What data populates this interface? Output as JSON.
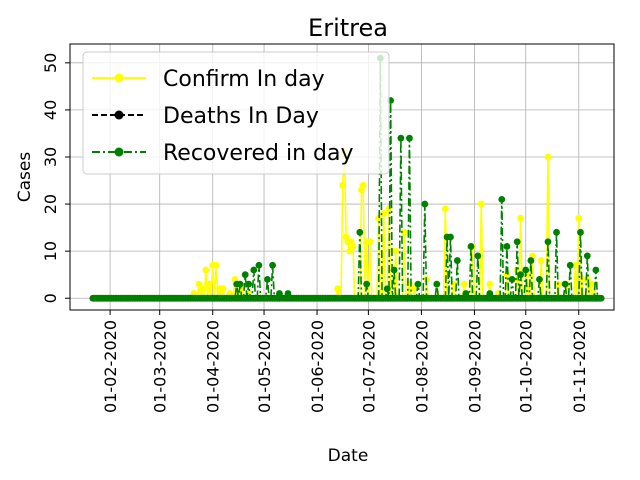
{
  "chart_data": {
    "type": "line",
    "title": "Eritrea",
    "xlabel": "Date",
    "ylabel": "Cases",
    "x_tick_labels": [
      "01-02-2020",
      "01-03-2020",
      "01-04-2020",
      "01-05-2020",
      "01-06-2020",
      "01-07-2020",
      "01-08-2020",
      "01-09-2020",
      "01-10-2020",
      "01-11-2020"
    ],
    "y_tick_labels": [
      "0",
      "10",
      "20",
      "30",
      "40",
      "50"
    ],
    "x_range": [
      "2020-01-22",
      "2020-11-14"
    ],
    "ylim": [
      -2.5,
      54
    ],
    "grid": true,
    "legend_position": "top-left",
    "series": [
      {
        "name": "Confirm In day",
        "color": "#ffff00",
        "line_style": "solid",
        "points": [
          [
            "2020-03-21",
            1
          ],
          [
            "2020-03-24",
            3
          ],
          [
            "2020-03-26",
            2
          ],
          [
            "2020-03-28",
            6
          ],
          [
            "2020-03-30",
            3
          ],
          [
            "2020-04-01",
            7
          ],
          [
            "2020-04-03",
            7
          ],
          [
            "2020-04-05",
            2
          ],
          [
            "2020-04-07",
            2
          ],
          [
            "2020-04-11",
            1
          ],
          [
            "2020-04-14",
            4
          ],
          [
            "2020-04-16",
            1
          ],
          [
            "2020-04-18",
            2
          ],
          [
            "2020-04-22",
            1
          ],
          [
            "2020-06-13",
            2
          ],
          [
            "2020-06-16",
            24
          ],
          [
            "2020-06-17",
            31
          ],
          [
            "2020-06-18",
            13
          ],
          [
            "2020-06-19",
            12
          ],
          [
            "2020-06-20",
            10
          ],
          [
            "2020-06-21",
            12
          ],
          [
            "2020-06-22",
            11
          ],
          [
            "2020-06-27",
            23
          ],
          [
            "2020-06-28",
            24
          ],
          [
            "2020-06-30",
            12
          ],
          [
            "2020-07-02",
            12
          ],
          [
            "2020-07-07",
            17
          ],
          [
            "2020-07-10",
            18
          ],
          [
            "2020-07-13",
            19
          ],
          [
            "2020-07-17",
            10
          ],
          [
            "2020-07-22",
            14
          ],
          [
            "2020-07-25",
            3
          ],
          [
            "2020-07-28",
            2
          ],
          [
            "2020-08-04",
            4
          ],
          [
            "2020-08-10",
            3
          ],
          [
            "2020-08-15",
            19
          ],
          [
            "2020-08-20",
            3
          ],
          [
            "2020-08-26",
            3
          ],
          [
            "2020-08-31",
            11
          ],
          [
            "2020-09-05",
            20
          ],
          [
            "2020-09-10",
            3
          ],
          [
            "2020-09-15",
            1
          ],
          [
            "2020-09-20",
            5
          ],
          [
            "2020-09-26",
            6
          ],
          [
            "2020-09-28",
            17
          ],
          [
            "2020-10-02",
            5
          ],
          [
            "2020-10-05",
            9
          ],
          [
            "2020-10-10",
            8
          ],
          [
            "2020-10-14",
            30
          ],
          [
            "2020-10-20",
            3
          ],
          [
            "2020-10-25",
            3
          ],
          [
            "2020-10-30",
            7
          ],
          [
            "2020-11-01",
            17
          ],
          [
            "2020-11-03",
            4
          ],
          [
            "2020-11-06",
            4
          ],
          [
            "2020-11-08",
            3
          ],
          [
            "2020-11-10",
            3
          ]
        ]
      },
      {
        "name": "Deaths In Day",
        "color": "#000000",
        "line_style": "dashed",
        "points": []
      },
      {
        "name": "Recovered in day",
        "color": "#008000",
        "line_style": "dashdot",
        "points": [
          [
            "2020-04-15",
            3
          ],
          [
            "2020-04-17",
            3
          ],
          [
            "2020-04-20",
            5
          ],
          [
            "2020-04-22",
            3
          ],
          [
            "2020-04-25",
            6
          ],
          [
            "2020-04-28",
            7
          ],
          [
            "2020-05-03",
            4
          ],
          [
            "2020-05-06",
            7
          ],
          [
            "2020-05-10",
            1
          ],
          [
            "2020-05-15",
            1
          ],
          [
            "2020-06-26",
            14
          ],
          [
            "2020-06-30",
            3
          ],
          [
            "2020-07-08",
            51
          ],
          [
            "2020-07-12",
            2
          ],
          [
            "2020-07-14",
            42
          ],
          [
            "2020-07-16",
            6
          ],
          [
            "2020-07-20",
            34
          ],
          [
            "2020-07-25",
            34
          ],
          [
            "2020-07-30",
            3
          ],
          [
            "2020-08-03",
            20
          ],
          [
            "2020-08-10",
            3
          ],
          [
            "2020-08-16",
            13
          ],
          [
            "2020-08-18",
            13
          ],
          [
            "2020-08-22",
            8
          ],
          [
            "2020-08-27",
            1
          ],
          [
            "2020-08-30",
            11
          ],
          [
            "2020-09-03",
            9
          ],
          [
            "2020-09-10",
            1
          ],
          [
            "2020-09-17",
            21
          ],
          [
            "2020-09-20",
            11
          ],
          [
            "2020-09-23",
            4
          ],
          [
            "2020-09-26",
            12
          ],
          [
            "2020-09-28",
            5
          ],
          [
            "2020-10-01",
            6
          ],
          [
            "2020-10-04",
            8
          ],
          [
            "2020-10-09",
            4
          ],
          [
            "2020-10-14",
            12
          ],
          [
            "2020-10-19",
            14
          ],
          [
            "2020-10-24",
            3
          ],
          [
            "2020-10-27",
            7
          ],
          [
            "2020-11-02",
            14
          ],
          [
            "2020-11-06",
            9
          ],
          [
            "2020-11-11",
            6
          ]
        ]
      }
    ]
  }
}
